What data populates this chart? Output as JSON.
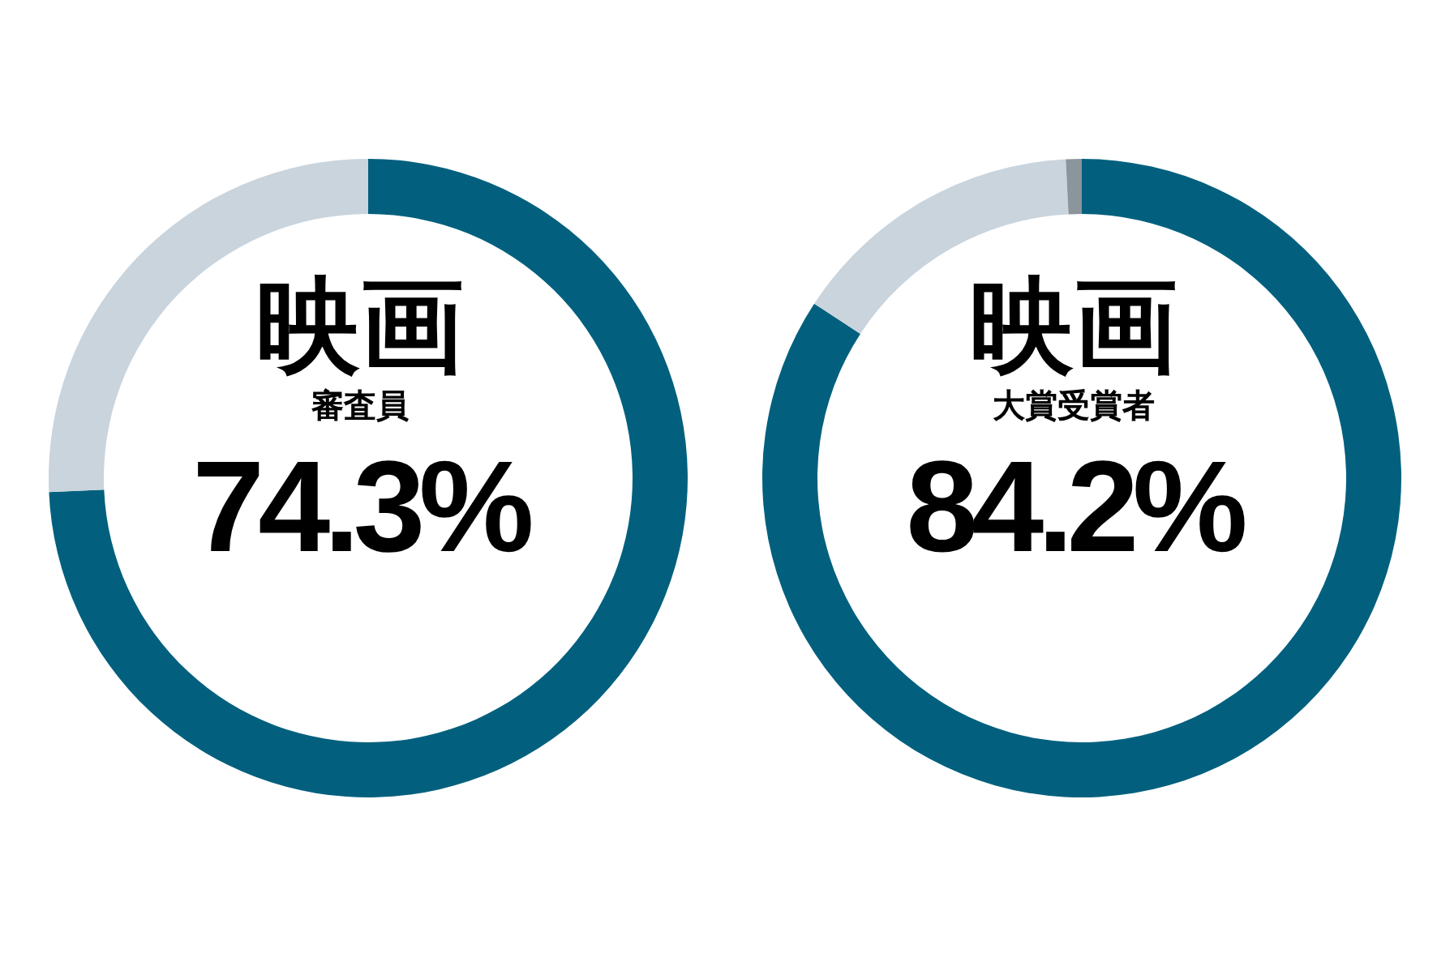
{
  "chart_data": [
    {
      "type": "donut",
      "title": "映画",
      "subtitle": "審査員",
      "categories": [
        null,
        null
      ],
      "values": [
        74.3,
        25.7
      ],
      "colors": [
        "#02607e",
        "#c9d4dd"
      ],
      "value_labels": [
        "74.3%",
        null
      ]
    },
    {
      "type": "donut",
      "title": "映画",
      "subtitle": "大賞受賞者",
      "categories": [
        null,
        null,
        null
      ],
      "values": [
        84.2,
        15.0,
        0.8
      ],
      "colors": [
        "#02607e",
        "#c9d4dd",
        "#8d959c"
      ],
      "value_labels": [
        "84.2%",
        null,
        null
      ]
    }
  ]
}
